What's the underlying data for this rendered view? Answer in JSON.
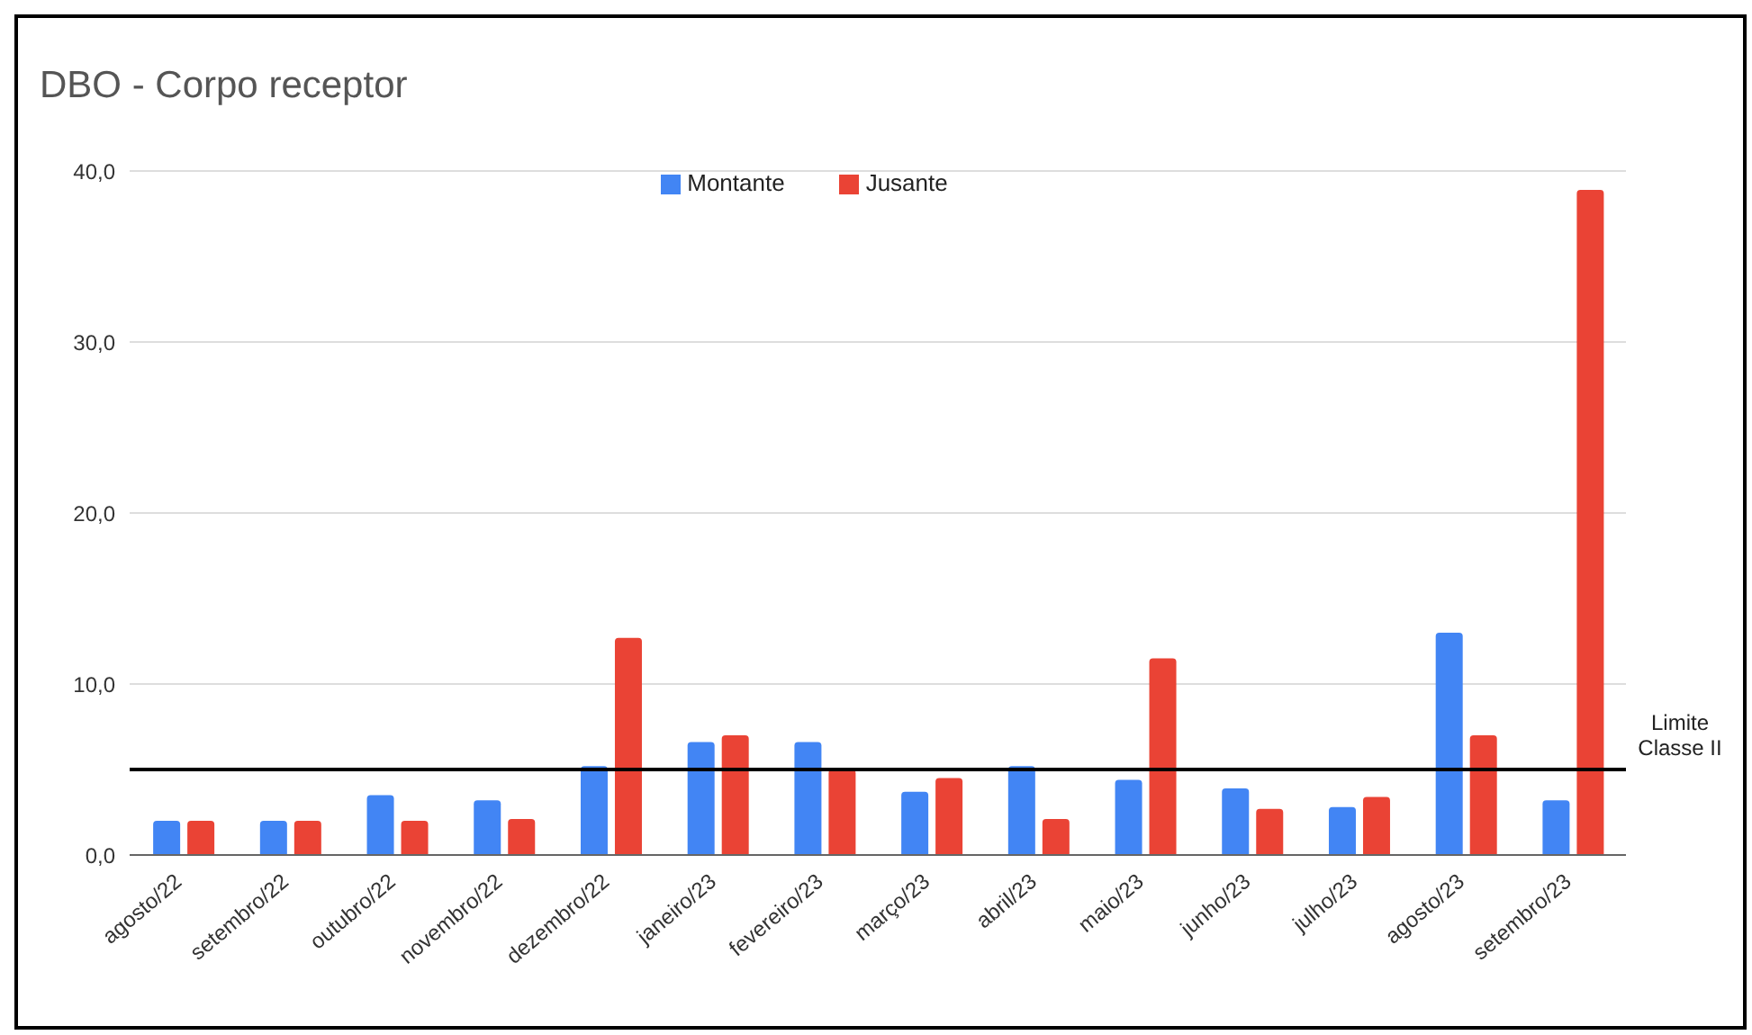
{
  "chart_data": {
    "type": "bar",
    "title": "DBO - Corpo receptor",
    "categories": [
      "agosto/22",
      "setembro/22",
      "outubro/22",
      "novembro/22",
      "dezembro/22",
      "janeiro/23",
      "fevereiro/23",
      "março/23",
      "abril/23",
      "maio/23",
      "junho/23",
      "julho/23",
      "agosto/23",
      "setembro/23"
    ],
    "series": [
      {
        "name": "Montante",
        "color": "#4285f4",
        "values": [
          2.0,
          2.0,
          3.5,
          3.2,
          5.2,
          6.6,
          6.6,
          3.7,
          5.2,
          4.4,
          3.9,
          2.8,
          13.0,
          3.2
        ]
      },
      {
        "name": "Jusante",
        "color": "#ea4335",
        "values": [
          2.0,
          2.0,
          2.0,
          2.1,
          12.7,
          7.0,
          5.0,
          4.5,
          2.1,
          11.5,
          2.7,
          3.4,
          7.0,
          38.9
        ]
      }
    ],
    "ylim": [
      0,
      40
    ],
    "yticks": [
      {
        "value": 0,
        "label": "0,0"
      },
      {
        "value": 10,
        "label": "10,0"
      },
      {
        "value": 20,
        "label": "20,0"
      },
      {
        "value": 30,
        "label": "30,0"
      },
      {
        "value": 40,
        "label": "40,0"
      }
    ],
    "grid": "y",
    "legend": "top",
    "ref_lines": [
      {
        "axis": "y",
        "value": 5,
        "label": "Limite Classe II",
        "color": "#000000"
      }
    ]
  }
}
